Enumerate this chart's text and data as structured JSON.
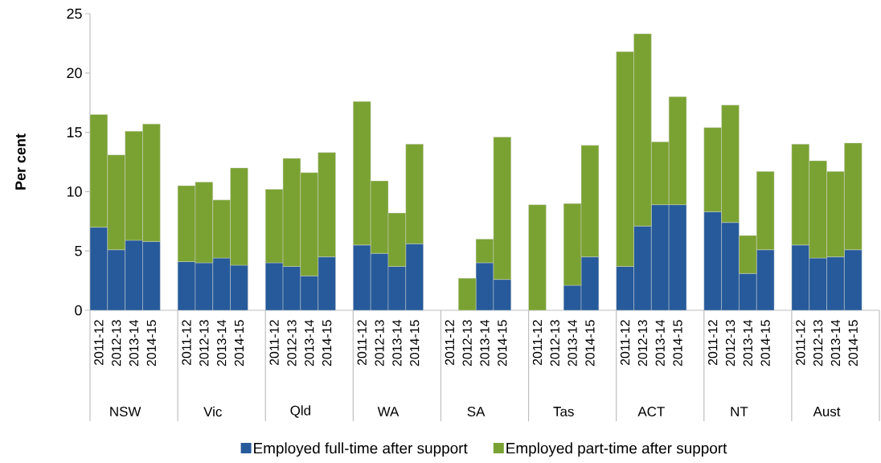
{
  "chart_data": {
    "type": "bar",
    "stacked": true,
    "ylabel": "Per cent",
    "ylim": [
      0,
      25
    ],
    "yticks": [
      0,
      5,
      10,
      15,
      20,
      25
    ],
    "legend": "bottom",
    "categories": [
      "2011-12",
      "2012-13",
      "2013-14",
      "2014-15",
      "2011-12",
      "2012-13",
      "2013-14",
      "2014-15",
      "2011-12",
      "2012-13",
      "2013-14",
      "2014-15",
      "2011-12",
      "2012-13",
      "2013-14",
      "2014-15",
      "2011-12",
      "2012-13",
      "2013-14",
      "2014-15",
      "2011-12",
      "2012-13",
      "2013-14",
      "2014-15",
      "2011-12",
      "2012-13",
      "2013-14",
      "2014-15",
      "2011-12",
      "2012-13",
      "2013-14",
      "2014-15",
      "2011-12",
      "2012-13",
      "2013-14",
      "2014-15"
    ],
    "annotations": [
      "NSW",
      "Vic",
      "Qld",
      "WA",
      "SA",
      "Tas",
      "ACT",
      "NT",
      "Aust"
    ],
    "series": [
      {
        "name": "Employed full-time after support",
        "color": "#265a9a",
        "values": [
          7.0,
          5.1,
          5.9,
          5.8,
          4.1,
          4.0,
          4.4,
          3.8,
          4.0,
          3.7,
          2.9,
          4.5,
          5.5,
          4.8,
          3.7,
          5.6,
          null,
          null,
          4.0,
          2.6,
          null,
          null,
          2.1,
          4.5,
          3.7,
          7.1,
          8.9,
          8.9,
          8.3,
          7.4,
          3.1,
          5.1,
          5.5,
          4.4,
          4.5,
          5.1
        ]
      },
      {
        "name": "Employed part-time after support",
        "color": "#7aa232",
        "values": [
          9.5,
          8.0,
          9.2,
          9.9,
          6.4,
          6.8,
          4.9,
          8.2,
          6.2,
          9.1,
          8.7,
          8.8,
          12.1,
          6.1,
          4.5,
          8.4,
          null,
          2.7,
          2.0,
          12.0,
          8.9,
          null,
          6.9,
          9.4,
          18.1,
          16.2,
          5.3,
          9.1,
          7.1,
          9.9,
          3.2,
          6.6,
          8.5,
          8.2,
          7.2,
          9.0
        ]
      }
    ]
  }
}
